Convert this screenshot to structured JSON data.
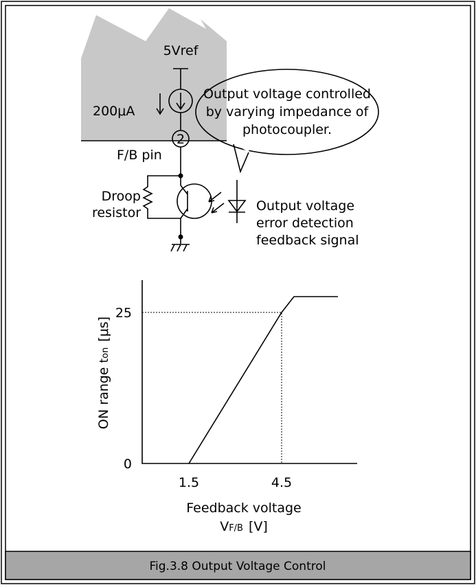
{
  "circuit": {
    "supply": "5Vref",
    "current": "200μA",
    "pin_number": "2",
    "pin_name": "F/B pin",
    "resistor_label": [
      "Droop",
      "resistor"
    ],
    "bubble": [
      "Output voltage controlled",
      "by varying impedance of",
      "photocoupler."
    ],
    "signal_label": [
      "Output voltage",
      "error detection",
      "feedback signal"
    ]
  },
  "graph": {
    "y_label": {
      "text": "ON range",
      "symbol": "t",
      "subscript": "on",
      "unit": "[μs]"
    },
    "x_label": {
      "text": "Feedback voltage",
      "symbol": "V",
      "subscript": "F/B",
      "unit": "[V]"
    },
    "yticks": [
      0,
      25
    ],
    "xticks": [
      1.5,
      4.5
    ]
  },
  "caption": "Fig.3.8 Output Voltage Control"
}
